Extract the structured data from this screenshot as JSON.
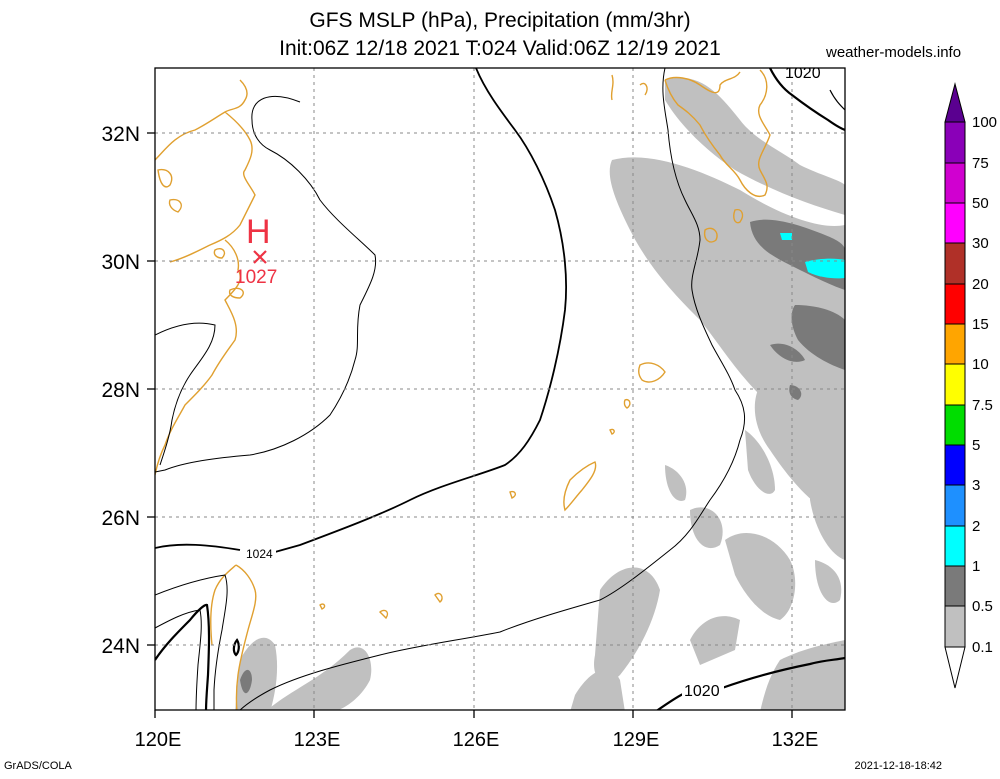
{
  "header": {
    "title_line1": "GFS MSLP (hPa), Precipitation (mm/3hr)",
    "title_line2": "Init:06Z 12/18 2021 T:024 Valid:06Z 12/19 2021",
    "credit": "weather-models.info"
  },
  "footer": {
    "left": "GrADS/COLA",
    "right": "2021-12-18-18:42"
  },
  "map": {
    "lon_ticks": [
      "120E",
      "123E",
      "126E",
      "129E",
      "132E"
    ],
    "lat_ticks": [
      "32N",
      "30N",
      "28N",
      "26N",
      "24N"
    ],
    "high_center": {
      "symbol": "H",
      "value": "1027"
    },
    "contour_labels": [
      "1024",
      "1020",
      "1020"
    ],
    "colors": {
      "coastline": "#e0a030",
      "high_marker": "#ee3344",
      "precip_light": "#c0c0c0",
      "precip_medium": "#7a7a7a",
      "precip_cyan": "#00ffff"
    }
  },
  "colorbar": {
    "labels": [
      "100",
      "75",
      "50",
      "30",
      "20",
      "15",
      "10",
      "7.5",
      "5",
      "3",
      "2",
      "1",
      "0.5",
      "0.1"
    ],
    "colors": [
      "#5a0090",
      "#8a00b8",
      "#d000d0",
      "#ff00ff",
      "#b03028",
      "#ff0000",
      "#ffa500",
      "#ffff00",
      "#00dd00",
      "#0000ff",
      "#1e90ff",
      "#00ffff",
      "#7a7a7a",
      "#c0c0c0"
    ]
  }
}
